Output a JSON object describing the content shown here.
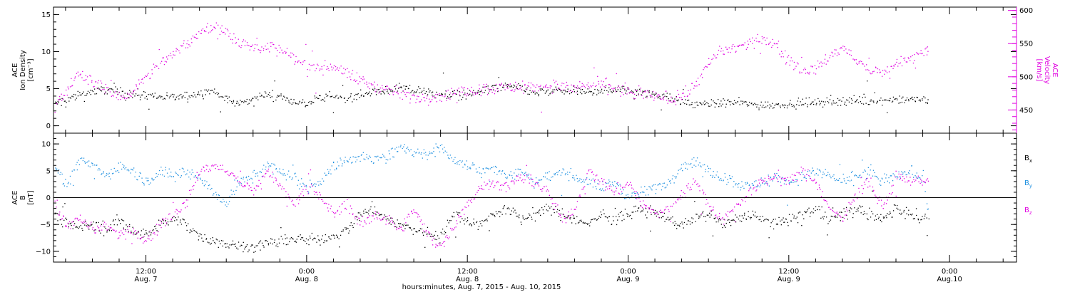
{
  "chart_data": {
    "type": "scatter",
    "x_axis": {
      "title": "hours:minutes, Aug.  7, 2015 - Aug. 10, 2015",
      "unit": "hours since 0:00 Aug. 7",
      "range": [
        5.1,
        77
      ],
      "ticks": [
        {
          "x": 12,
          "time": "12:00",
          "date": "Aug. 7"
        },
        {
          "x": 24,
          "time": "0:00",
          "date": "Aug. 8"
        },
        {
          "x": 36,
          "time": "12:00",
          "date": "Aug. 8"
        },
        {
          "x": 48,
          "time": "0:00",
          "date": "Aug. 9"
        },
        {
          "x": 60,
          "time": "12:00",
          "date": "Aug. 9"
        },
        {
          "x": 72,
          "time": "0:00",
          "date": "Aug.10"
        }
      ]
    },
    "panels": [
      {
        "name": "plasma",
        "left_axis": {
          "label_lines": [
            "ACE",
            "Ion Density",
            "[cm⁻³]"
          ],
          "range": [
            -1,
            16
          ],
          "ticks": [
            0,
            5,
            10,
            15
          ],
          "color": "#000000"
        },
        "right_axis": {
          "label_lines": [
            "ACE",
            "Velocity",
            "[km/s]"
          ],
          "range": [
            415,
            605
          ],
          "ticks": [
            450,
            500,
            550,
            600
          ],
          "color": "#e000e0"
        },
        "series": [
          {
            "name": "Ion Density",
            "axis": "left",
            "color": "#000000",
            "x": [
              5.2,
              6,
              7,
              8,
              9,
              10,
              11,
              12,
              13,
              14,
              15,
              16,
              17,
              18,
              19,
              20,
              21,
              22,
              23,
              24,
              25,
              26,
              27,
              28,
              29,
              30,
              31,
              32,
              33,
              34,
              35,
              36,
              37,
              38,
              39,
              40,
              41,
              42,
              43,
              44,
              45,
              46,
              47,
              48,
              49,
              50,
              51,
              52,
              53,
              54,
              55,
              56,
              57,
              58,
              59,
              60,
              61,
              62,
              63,
              64,
              65,
              66,
              67,
              68,
              69,
              70,
              70.4
            ],
            "y": [
              3,
              3.5,
              4.2,
              4.7,
              5,
              4.6,
              4.3,
              4.1,
              4,
              3.9,
              4,
              4.4,
              4.8,
              3.6,
              3,
              3.8,
              4.3,
              3.9,
              3.4,
              3,
              3.6,
              4.1,
              3.8,
              4.2,
              4.6,
              4.9,
              5.1,
              4.8,
              4.5,
              4.3,
              4.2,
              4.3,
              4.7,
              5.2,
              5.4,
              5,
              4.5,
              4.6,
              4.8,
              4.7,
              4.6,
              4.8,
              5,
              4.9,
              4.6,
              4.3,
              3.8,
              3.2,
              3,
              3,
              3.1,
              3.2,
              3,
              2.8,
              2.9,
              3,
              3.1,
              3.2,
              3.3,
              3.4,
              3.5,
              3.5,
              3.6,
              3.7,
              3.6,
              3.5,
              3.4
            ]
          },
          {
            "name": "Velocity",
            "axis": "right",
            "color": "#e000e0",
            "x": [
              5.2,
              6,
              7,
              8,
              9,
              10,
              11,
              12,
              13,
              14,
              15,
              16,
              17,
              18,
              19,
              20,
              21,
              22,
              23,
              24,
              25,
              26,
              27,
              28,
              29,
              30,
              31,
              32,
              33,
              34,
              35,
              36,
              37,
              38,
              39,
              40,
              41,
              42,
              43,
              44,
              45,
              46,
              47,
              48,
              49,
              50,
              51,
              52,
              53,
              54,
              55,
              56,
              57,
              58,
              59,
              60,
              61,
              62,
              63,
              64,
              65,
              66,
              67,
              68,
              69,
              70,
              70.4
            ],
            "y": [
              455,
              480,
              505,
              495,
              480,
              470,
              478,
              500,
              525,
              535,
              550,
              565,
              575,
              568,
              552,
              545,
              548,
              540,
              528,
              520,
              513,
              518,
              505,
              495,
              487,
              480,
              475,
              470,
              470,
              472,
              478,
              480,
              482,
              485,
              483,
              487,
              485,
              488,
              486,
              483,
              486,
              490,
              483,
              478,
              474,
              472,
              468,
              470,
              490,
              520,
              540,
              545,
              550,
              558,
              550,
              525,
              510,
              512,
              530,
              545,
              525,
              510,
              505,
              520,
              525,
              540,
              545
            ]
          }
        ]
      },
      {
        "name": "magnetic",
        "left_axis": {
          "label_lines": [
            "ACE",
            "B",
            "[nT]"
          ],
          "range": [
            -12,
            12
          ],
          "ticks": [
            -10,
            -5,
            0,
            5,
            10
          ],
          "color": "#000000"
        },
        "zero_line": true,
        "legend": {
          "position": "right",
          "entries": [
            {
              "name": "B",
              "sub": "x",
              "color": "#000000"
            },
            {
              "name": "B",
              "sub": "y",
              "color": "#1e90e0"
            },
            {
              "name": "B",
              "sub": "z",
              "color": "#e000e0"
            }
          ]
        },
        "series": [
          {
            "name": "Bx",
            "color": "#000000",
            "x": [
              5.2,
              6,
              7,
              8,
              9,
              10,
              11,
              12,
              13,
              14,
              15,
              16,
              17,
              18,
              19,
              20,
              21,
              22,
              23,
              24,
              25,
              26,
              27,
              28,
              29,
              30,
              31,
              32,
              33,
              34,
              35,
              36,
              37,
              38,
              39,
              40,
              41,
              42,
              43,
              44,
              45,
              46,
              47,
              48,
              49,
              50,
              51,
              52,
              53,
              54,
              55,
              56,
              57,
              58,
              59,
              60,
              61,
              62,
              63,
              64,
              65,
              66,
              67,
              68,
              69,
              70,
              70.4
            ],
            "y": [
              -3,
              -5,
              -5.5,
              -5,
              -6,
              -4,
              -6,
              -7,
              -5,
              -4,
              -5,
              -7,
              -8,
              -8.5,
              -9,
              -9,
              -8.5,
              -8,
              -7.5,
              -8,
              -7.5,
              -7,
              -6,
              -3,
              -2,
              -4,
              -5,
              -6,
              -6.5,
              -7,
              -3,
              -4,
              -5,
              -3,
              -2,
              -4,
              -3,
              -2,
              -3,
              -4,
              -5,
              -3,
              -4,
              -3,
              -2,
              -3,
              -4,
              -5,
              -4,
              -3,
              -5,
              -4,
              -3,
              -4,
              -5,
              -4,
              -3,
              -2,
              -4,
              -3,
              -2,
              -3,
              -4,
              -2,
              -3,
              -4,
              -3.5
            ]
          },
          {
            "name": "By",
            "color": "#1e90e0",
            "x": [
              5.2,
              6,
              7,
              8,
              9,
              10,
              11,
              12,
              13,
              14,
              15,
              16,
              17,
              18,
              19,
              20,
              21,
              22,
              23,
              24,
              25,
              26,
              27,
              28,
              29,
              30,
              31,
              32,
              33,
              34,
              35,
              36,
              37,
              38,
              39,
              40,
              41,
              42,
              43,
              44,
              45,
              46,
              47,
              48,
              49,
              50,
              51,
              52,
              53,
              54,
              55,
              56,
              57,
              58,
              59,
              60,
              61,
              62,
              63,
              64,
              65,
              66,
              67,
              68,
              69,
              70,
              70.4
            ],
            "y": [
              6,
              2,
              7,
              6,
              4,
              6,
              5,
              3,
              5,
              4,
              5,
              4,
              1,
              -1,
              3,
              4,
              6,
              5,
              4,
              2,
              3,
              6,
              7,
              8,
              7,
              8,
              9,
              9,
              8,
              9.5,
              7,
              6,
              5,
              6,
              4,
              5,
              3,
              4,
              5,
              4,
              3,
              2,
              3,
              0,
              1,
              2,
              3,
              6,
              7,
              5,
              4,
              3,
              2,
              3,
              4,
              3,
              4,
              5,
              4,
              3,
              4,
              5,
              3,
              4,
              5,
              4,
              -3
            ]
          },
          {
            "name": "Bz",
            "color": "#e000e0",
            "x": [
              5.2,
              6,
              7,
              8,
              9,
              10,
              11,
              12,
              13,
              14,
              15,
              16,
              17,
              18,
              19,
              20,
              21,
              22,
              23,
              24,
              25,
              26,
              27,
              28,
              29,
              30,
              31,
              32,
              33,
              34,
              35,
              36,
              37,
              38,
              39,
              40,
              41,
              42,
              43,
              44,
              45,
              46,
              47,
              48,
              49,
              50,
              51,
              52,
              53,
              54,
              55,
              56,
              57,
              58,
              59,
              60,
              61,
              62,
              63,
              64,
              65,
              66,
              67,
              68,
              69,
              70,
              70.4
            ],
            "y": [
              -1,
              -5,
              -4,
              -6,
              -5,
              -7,
              -6,
              -8,
              -5,
              -3,
              -1,
              5,
              6,
              5,
              3,
              1,
              5,
              2,
              -1,
              2,
              0,
              -3,
              -1,
              -5,
              -3,
              -4,
              -6,
              -2,
              -7,
              -9,
              -5,
              -1,
              2,
              3,
              2,
              4,
              3,
              1,
              -4,
              -2,
              5,
              3,
              1,
              3,
              -1,
              -3,
              -2,
              1,
              3,
              -1,
              -4,
              -2,
              1,
              3,
              4,
              3,
              5,
              3,
              -2,
              -4,
              1,
              3,
              -2,
              4,
              3,
              3.5,
              3
            ]
          }
        ]
      }
    ]
  }
}
